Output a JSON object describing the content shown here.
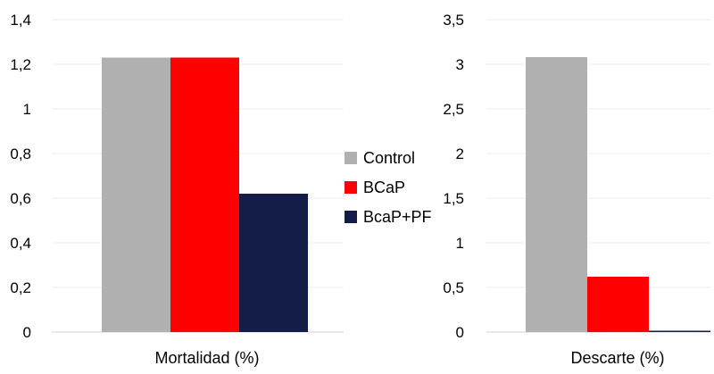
{
  "legend": {
    "items": [
      {
        "label": "Control",
        "color": "#b0b0b0"
      },
      {
        "label": "BCaP",
        "color": "#ff0000"
      },
      {
        "label": "BcaP+PF",
        "color": "#141c48"
      }
    ]
  },
  "chart_data": [
    {
      "type": "bar",
      "categories": [
        "Mortalidad (%)"
      ],
      "series": [
        {
          "name": "Control",
          "values": [
            1.23
          ]
        },
        {
          "name": "BCaP",
          "values": [
            1.23
          ]
        },
        {
          "name": "BcaP+PF",
          "values": [
            0.62
          ]
        }
      ],
      "title": "",
      "xlabel": "Mortalidad (%)",
      "ylabel": "",
      "ylim": [
        0,
        1.4
      ],
      "yticks": [
        "0",
        "0,2",
        "0,4",
        "0,6",
        "0,8",
        "1",
        "1,2",
        "1,4"
      ],
      "grid": true,
      "legend_position": "right"
    },
    {
      "type": "bar",
      "categories": [
        "Descarte (%)"
      ],
      "series": [
        {
          "name": "Control",
          "values": [
            3.08
          ]
        },
        {
          "name": "BCaP",
          "values": [
            0.62
          ]
        },
        {
          "name": "BcaP+PF",
          "values": [
            0
          ]
        }
      ],
      "title": "",
      "xlabel": "Descarte (%)",
      "ylabel": "",
      "ylim": [
        0,
        3.5
      ],
      "yticks": [
        "0",
        "0,5",
        "1",
        "1,5",
        "2",
        "2,5",
        "3",
        "3,5"
      ],
      "grid": true,
      "legend_position": "left"
    }
  ]
}
